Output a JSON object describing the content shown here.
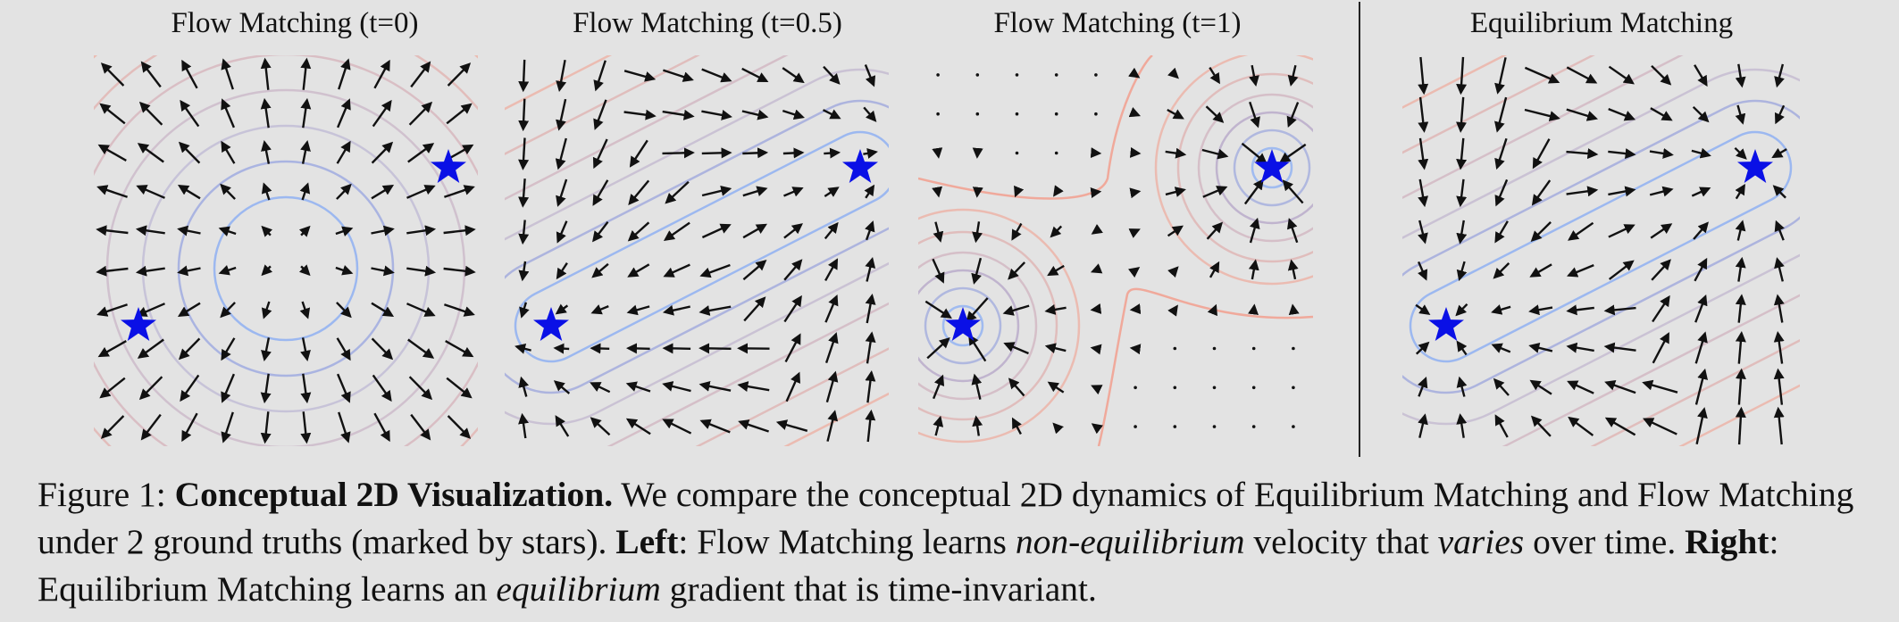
{
  "panels": [
    {
      "title": "Flow Matching (t=0)"
    },
    {
      "title": "Flow Matching (t=0.5)"
    },
    {
      "title": "Flow Matching (t=1)"
    },
    {
      "title": "Equilibrium Matching"
    }
  ],
  "colors": {
    "background": "#e3e3e3",
    "star": "#0a10e6",
    "contour_low": "#8fb0f2",
    "contour_high": "#f39a88",
    "arrow": "#111111",
    "divider": "#222222"
  },
  "caption": {
    "figure_label": "Figure 1:",
    "title_bold": "Conceptual 2D Visualization.",
    "text1": "We compare the conceptual 2D dynamics of Equilibrium Matching and Flow Matching under 2 ground truths (marked by stars).",
    "left_bold": "Left",
    "text2": ": Flow Matching learns",
    "non_eq_italic": "non-equilibrium",
    "text3": "velocity that",
    "varies_italic": "varies",
    "text4": "over time.",
    "right_bold": "Right",
    "text5": ": Equilibrium Matching learns an",
    "eq_italic": "equilibrium",
    "text6": "gradient that is time-invariant."
  }
}
